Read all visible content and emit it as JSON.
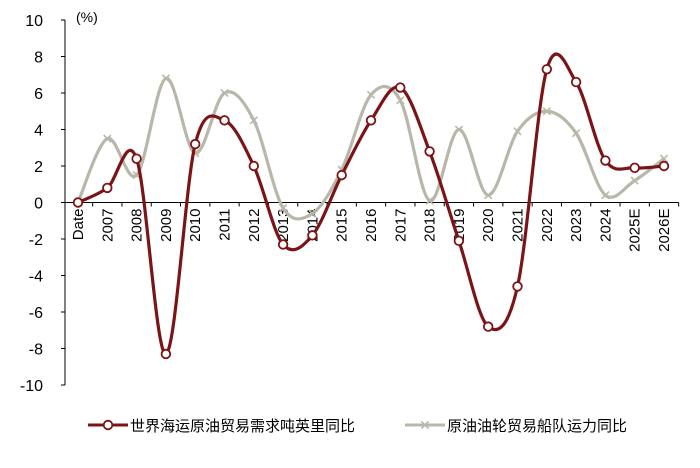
{
  "chart_data": {
    "type": "line",
    "unit_label": "(%)",
    "categories": [
      "Date",
      "2007",
      "2008",
      "2009",
      "2010",
      "2011",
      "2012",
      "2013",
      "2014",
      "2015",
      "2016",
      "2017",
      "2018",
      "2019",
      "2020",
      "2021",
      "2022",
      "2023",
      "2024",
      "2025E",
      "2026E"
    ],
    "ylim": [
      -10,
      10
    ],
    "yticks": [
      "10",
      "8",
      "6",
      "4",
      "2",
      "0",
      "-2",
      "-4",
      "-6",
      "-8",
      "-10"
    ],
    "series": [
      {
        "name": "世界海运原油贸易需求吨英里同比",
        "color": "#7b1416",
        "marker": "circle",
        "values": [
          0.0,
          0.8,
          2.4,
          -8.3,
          3.2,
          4.5,
          2.0,
          -2.3,
          -1.8,
          1.5,
          4.5,
          6.3,
          2.8,
          -2.1,
          -6.8,
          -4.6,
          7.3,
          6.6,
          2.3,
          1.9,
          2.0
        ]
      },
      {
        "name": "原油油轮贸易船队运力同比",
        "color": "#b9b7a9",
        "marker": "x",
        "values": [
          0.0,
          3.5,
          1.5,
          6.8,
          2.7,
          6.0,
          4.5,
          -0.3,
          -0.6,
          1.8,
          5.9,
          5.6,
          0.1,
          4.0,
          0.4,
          3.9,
          5.0,
          3.8,
          0.4,
          1.2,
          2.4
        ]
      }
    ]
  }
}
